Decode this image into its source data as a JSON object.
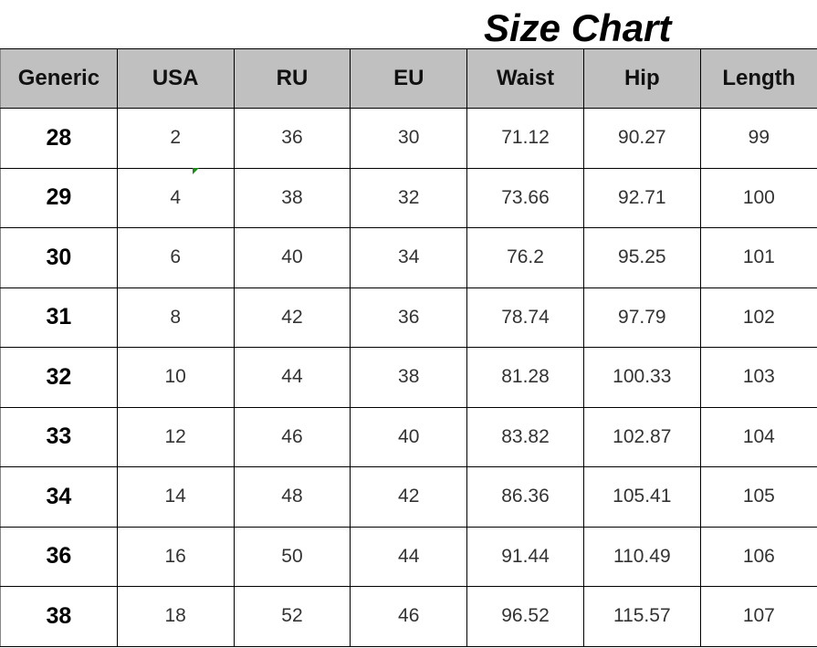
{
  "title": "Size Chart",
  "columns": [
    "Generic",
    "USA",
    "RU",
    "EU",
    "Waist",
    "Hip",
    "Length"
  ],
  "rows": [
    [
      "28",
      "2",
      "36",
      "30",
      "71.12",
      "90.27",
      "99"
    ],
    [
      "29",
      "4",
      "38",
      "32",
      "73.66",
      "92.71",
      "100"
    ],
    [
      "30",
      "6",
      "40",
      "34",
      "76.2",
      "95.25",
      "101"
    ],
    [
      "31",
      "8",
      "42",
      "36",
      "78.74",
      "97.79",
      "102"
    ],
    [
      "32",
      "10",
      "44",
      "38",
      "81.28",
      "100.33",
      "103"
    ],
    [
      "33",
      "12",
      "46",
      "40",
      "83.82",
      "102.87",
      "104"
    ],
    [
      "34",
      "14",
      "48",
      "42",
      "86.36",
      "105.41",
      "105"
    ],
    [
      "36",
      "16",
      "50",
      "44",
      "91.44",
      "110.49",
      "106"
    ],
    [
      "38",
      "18",
      "52",
      "46",
      "96.52",
      "115.57",
      "107"
    ]
  ],
  "colors": {
    "header_bg": "#c0c0c0",
    "cell_marker": "#1a8a1a"
  }
}
